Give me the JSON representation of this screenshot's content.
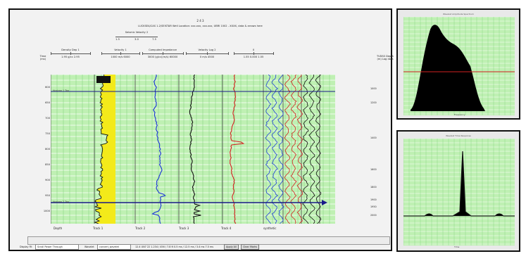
{
  "main_window": {
    "depth_title": "2 4 3",
    "title": "LUCKSEA/CAS 1.2/SEISTAR Well Location: xxx.xxx, xxx.xxx, UBRI 1002 - XXXX, data & arrows here",
    "left_axis_label": "Time (ms)",
    "right_axis_label": "TVDSS Depth (m) Log data",
    "header_group_label": "Seismic Velocity 2",
    "header_group_ticks": [
      "1.5",
      "3.0",
      "7.5"
    ],
    "track_headers": [
      {
        "name": "Density Dep 1",
        "scale": "1.95   g/cc   2.95"
      },
      {
        "name": "Velocity 1",
        "scale": "1000   m/s   6000"
      },
      {
        "name": "Computed Impedance",
        "scale": "3000  (g/cc)(m/s)  60000"
      },
      {
        "name": "Velocity Log 2",
        "scale": "0      m/s     4500"
      },
      {
        "name": "0",
        "scale": "1.55  0.000  1.55"
      }
    ],
    "depth_labels": [
      "600",
      "650",
      "700",
      "750",
      "800",
      "850",
      "900",
      "950",
      "1000"
    ],
    "right_depth_labels": [
      "1000",
      "1200",
      "1400",
      "1600",
      "1800",
      "1900",
      "1950",
      "2000"
    ],
    "marker_labels": [
      "Horizon 1 Top",
      "Horizon 2 Top"
    ],
    "track_footers": [
      "Depth",
      "Track 1",
      "Track 2",
      "Track 3",
      "Track 4",
      "synthetic"
    ]
  },
  "status_bar": {
    "display_label": "Display Fit",
    "display_value": "Scroll Power Through",
    "wavelet_label": "Wavelet",
    "wavelet_value": "convert_wavelet",
    "info_text": "12.4 UN7 22   1.234 / 456 / 7.8 ft 0.5 ms / 12.5 ms / 3.4 ms  7.5 ms",
    "apply_label": "Apply All",
    "clear_label": "Clear Marks"
  },
  "top_plot": {
    "title": "Wavelet Amplitude Spectrum",
    "x_label": "Frequency",
    "fill_color": "#000000",
    "line_color": "#d22020"
  },
  "bottom_plot": {
    "title": "Wavelet Time Response",
    "x_label": "Time",
    "fill_color": "#000000"
  },
  "colors": {
    "plot_background": "#bff0b3",
    "density_fill": "#f3ea1a",
    "velocity_curve": "#1a33d8",
    "impedance_curve": "#111111",
    "velocity2_curve": "#d42222",
    "synthetic_blue": "#2040d8",
    "synthetic_red": "#d42222",
    "marker_line": "#1a1a8a"
  }
}
